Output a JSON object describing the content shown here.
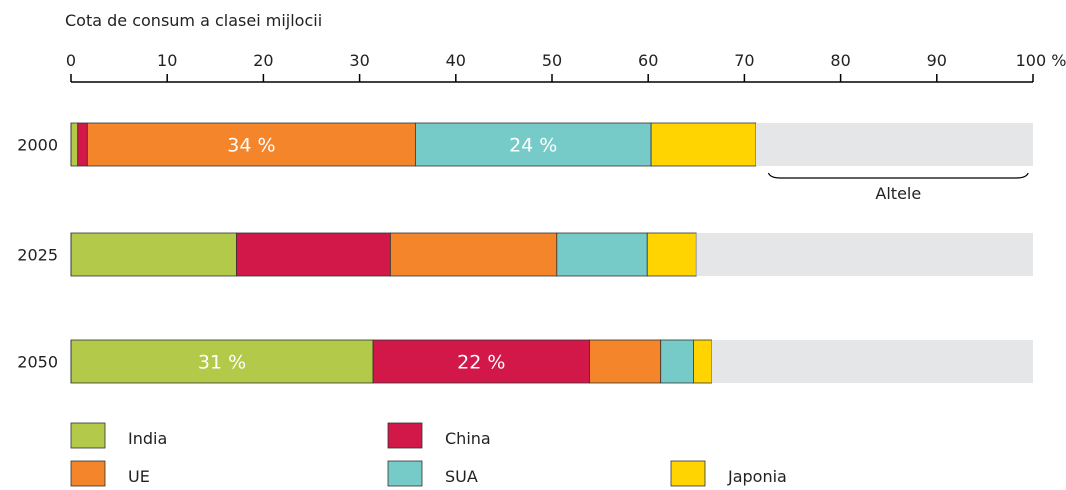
{
  "chart_data": {
    "type": "bar",
    "orientation": "horizontal",
    "stacked": true,
    "title": "Cota de consum a clasei mijlocii",
    "unit": "%",
    "xlim": [
      0,
      100
    ],
    "ticks": [
      0,
      10,
      20,
      30,
      40,
      50,
      60,
      70,
      80,
      90,
      100
    ],
    "categories": [
      "2000",
      "2025",
      "2050"
    ],
    "series": [
      {
        "name": "India",
        "color": "#b2c94a",
        "values": [
          0.7,
          17.2,
          31.4
        ]
      },
      {
        "name": "China",
        "color": "#d21848",
        "values": [
          1.0,
          16.0,
          22.5
        ]
      },
      {
        "name": "UE",
        "color": "#f4852a",
        "values": [
          34.1,
          17.3,
          7.4
        ]
      },
      {
        "name": "SUA",
        "color": "#76cbc9",
        "values": [
          24.5,
          9.4,
          3.4
        ]
      },
      {
        "name": "Japonia",
        "color": "#ffd400",
        "values": [
          10.9,
          5.1,
          1.9
        ]
      },
      {
        "name": "Altele",
        "color": "#e5e6e7",
        "values": [
          28.8,
          35.0,
          33.4
        ]
      }
    ],
    "bar_labels": [
      {
        "category": "2000",
        "series": "UE",
        "text": "34 %"
      },
      {
        "category": "2000",
        "series": "SUA",
        "text": "24 %"
      },
      {
        "category": "2050",
        "series": "India",
        "text": "31 %"
      },
      {
        "category": "2050",
        "series": "China",
        "text": "22 %"
      }
    ],
    "annotation": {
      "text": "Altele",
      "category": "2000",
      "from": 72.5,
      "to": 99.5
    },
    "legend": {
      "placement": "bottom",
      "entries": [
        "India",
        "China",
        "UE",
        "SUA",
        "Japonia"
      ]
    }
  }
}
